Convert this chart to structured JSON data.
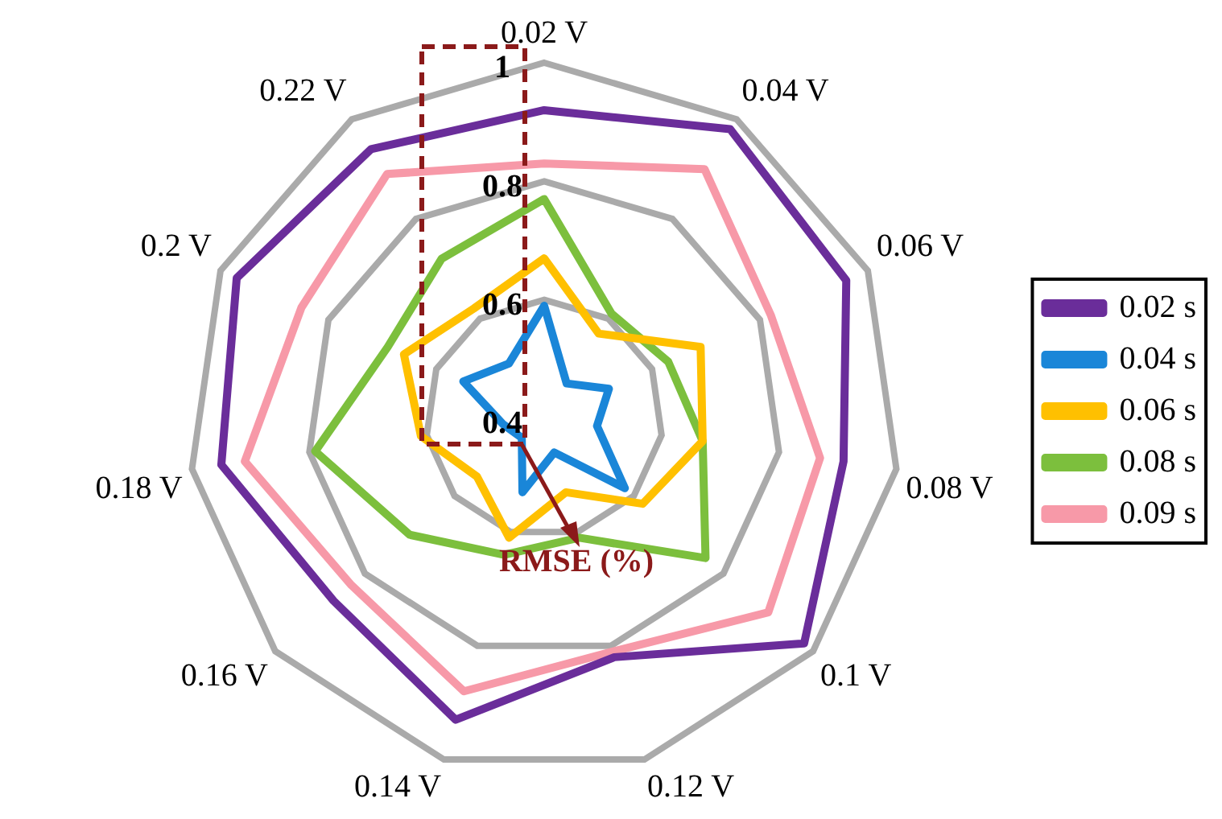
{
  "chart_data": {
    "type": "radar",
    "categories": [
      "0.02 V",
      "0.04 V",
      "0.06 V",
      "0.08 V",
      "0.1 V",
      "0.12 V",
      "0.14 V",
      "0.16 V",
      "0.18 V",
      "0.2 V",
      "0.22 V"
    ],
    "series": [
      {
        "name": "0.02 s",
        "color": "#6a2d9a",
        "values": [
          0.92,
          0.98,
          0.96,
          0.91,
          0.98,
          0.82,
          0.93,
          0.87,
          0.95,
          0.97,
          0.94
        ]
      },
      {
        "name": "0.04 s",
        "color": "#1a86d8",
        "values": [
          0.59,
          0.47,
          0.52,
          0.49,
          0.58,
          0.46,
          0.53,
          0.45,
          0.47,
          0.55,
          0.51
        ]
      },
      {
        "name": "0.06 s",
        "color": "#ffc000",
        "values": [
          0.67,
          0.57,
          0.69,
          0.67,
          0.62,
          0.53,
          0.61,
          0.55,
          0.61,
          0.66,
          0.62
        ]
      },
      {
        "name": "0.08 s",
        "color": "#7cbf3d",
        "values": [
          0.77,
          0.61,
          0.63,
          0.67,
          0.76,
          0.61,
          0.64,
          0.7,
          0.79,
          0.69,
          0.72
        ]
      },
      {
        "name": "0.09 s",
        "color": "#f799a8",
        "values": [
          0.83,
          0.9,
          0.82,
          0.87,
          0.9,
          0.81,
          0.88,
          0.83,
          0.91,
          0.85,
          0.89
        ]
      }
    ],
    "ylim": [
      0.4,
      1
    ],
    "yticks": [
      0.4,
      0.6,
      0.8,
      1
    ],
    "grid": true,
    "legend": "right",
    "marker": "none",
    "line_style": "solid",
    "annotations": [
      "RMSE (%)"
    ]
  }
}
